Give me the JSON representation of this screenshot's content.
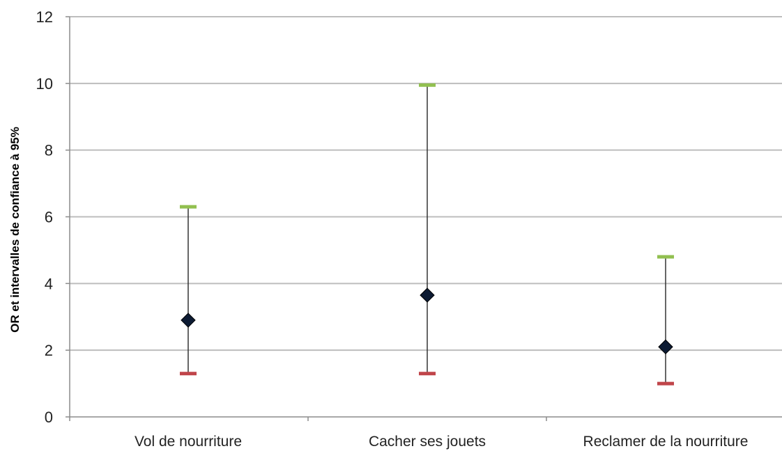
{
  "chart_data": {
    "type": "error-bar",
    "title": "",
    "xlabel": "",
    "ylabel": "OR et intervalles de confiance à 95%",
    "ylim": [
      0,
      12
    ],
    "yticks": [
      0,
      2,
      4,
      6,
      8,
      10,
      12
    ],
    "grid": true,
    "categories": [
      "Vol de nourriture",
      "Cacher ses jouets",
      "Reclamer de la nourriture"
    ],
    "series": [
      {
        "values": [
          2.9,
          3.65,
          2.1
        ]
      },
      {
        "values": [
          6.3,
          9.95,
          4.8
        ]
      },
      {
        "values": [
          1.3,
          1.3,
          1.0
        ]
      }
    ],
    "colors": {
      "point": "#0d1b33",
      "upper": "#92c050",
      "lower": "#c0454a",
      "whisker": "#333333"
    }
  }
}
